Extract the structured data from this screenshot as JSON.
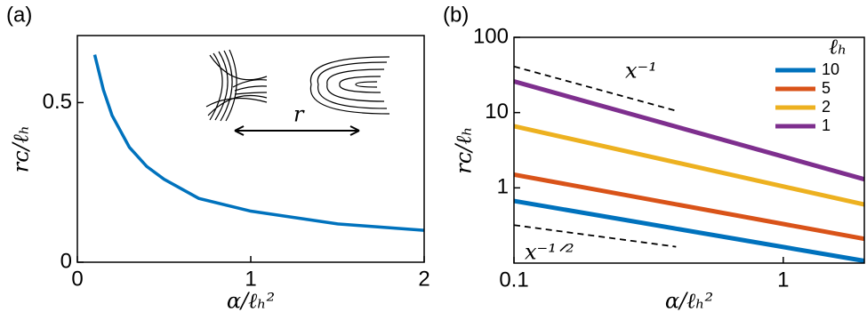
{
  "chart_data": [
    {
      "type": "line",
      "panel_label": "(a)",
      "xlabel": "α/ℓₕ²",
      "ylabel": "rᴄ/ℓₕ",
      "x": [
        0.1,
        0.15,
        0.2,
        0.3,
        0.4,
        0.5,
        0.7,
        1.0,
        1.5,
        2.0
      ],
      "values": [
        0.65,
        0.54,
        0.46,
        0.36,
        0.3,
        0.26,
        0.2,
        0.16,
        0.12,
        0.1
      ],
      "color": "#0072bd",
      "xlim": [
        0,
        2
      ],
      "ylim": [
        0,
        0.71
      ],
      "xticks": [
        0,
        1,
        2
      ],
      "yticks": [
        0,
        0.5
      ],
      "annotation": "r"
    },
    {
      "type": "line",
      "panel_label": "(b)",
      "xlabel": "α/ℓₕ²",
      "ylabel": "rᴄ/ℓₕ",
      "xscale": "log",
      "yscale": "log",
      "x": [
        0.1,
        2
      ],
      "series": [
        {
          "name": "10",
          "color": "#0072bd",
          "values": [
            0.67,
            0.107
          ]
        },
        {
          "name": "5",
          "color": "#d95319",
          "values": [
            1.5,
            0.21
          ]
        },
        {
          "name": "2",
          "color": "#edb120",
          "values": [
            6.6,
            0.6
          ]
        },
        {
          "name": "1",
          "color": "#7e2f8e",
          "values": [
            26,
            1.3
          ]
        }
      ],
      "legend": "upper right",
      "legend_title": "ℓₕ",
      "reference_lines": [
        {
          "label": "x⁻¹",
          "x": [
            0.1,
            0.395
          ],
          "values": [
            41,
            10.7
          ]
        },
        {
          "label": "x⁻¹ᐟ²",
          "x": [
            0.1,
            0.4
          ],
          "values": [
            0.32,
            0.165
          ]
        }
      ],
      "xlim": [
        0.1,
        2
      ],
      "ylim": [
        0.1,
        100
      ],
      "xticks": [
        0.1,
        1
      ],
      "yticks": [
        1,
        10,
        100
      ]
    }
  ]
}
